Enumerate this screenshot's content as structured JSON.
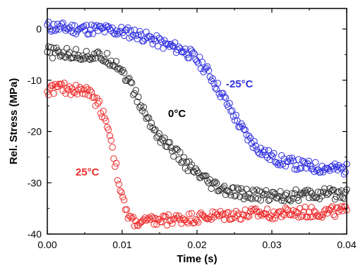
{
  "chart_data": {
    "type": "scatter",
    "title": "",
    "xlabel": "Time (s)",
    "ylabel": "Rel. Stress (MPa)",
    "xlim": [
      0.0,
      0.04
    ],
    "ylim": [
      -40,
      4
    ],
    "xticks": [
      0.0,
      0.01,
      0.02,
      0.03,
      0.04
    ],
    "xtick_labels": [
      "0.00",
      "0.01",
      "0.02",
      "0.03",
      "0.04"
    ],
    "yticks": [
      0,
      -10,
      -20,
      -30,
      -40
    ],
    "ytick_labels": [
      "0",
      "-10",
      "-20",
      "-30",
      "-40"
    ],
    "marker": "open-circle",
    "grid": false,
    "legend": "none (series labeled directly on plot)",
    "series": [
      {
        "name": "-25°C",
        "color": "#2f2fe0",
        "x": [
          0.0,
          0.002,
          0.004,
          0.006,
          0.008,
          0.01,
          0.012,
          0.014,
          0.016,
          0.018,
          0.019,
          0.02,
          0.021,
          0.022,
          0.023,
          0.024,
          0.025,
          0.026,
          0.027,
          0.028,
          0.029,
          0.03,
          0.031,
          0.032,
          0.033,
          0.034,
          0.035,
          0.036,
          0.037,
          0.038,
          0.039,
          0.04
        ],
        "y": [
          0.5,
          0.2,
          0.0,
          0.0,
          -0.2,
          -0.5,
          -1.0,
          -2.0,
          -3.2,
          -4.0,
          -4.8,
          -6.0,
          -7.5,
          -9.5,
          -12.0,
          -14.5,
          -17.0,
          -19.5,
          -21.5,
          -23.0,
          -24.2,
          -25.0,
          -25.6,
          -26.0,
          -26.3,
          -26.6,
          -26.8,
          -27.0,
          -27.1,
          -27.2,
          -27.3,
          -27.4
        ]
      },
      {
        "name": "0°C",
        "color": "#333333",
        "x": [
          0.0,
          0.002,
          0.004,
          0.006,
          0.008,
          0.009,
          0.01,
          0.011,
          0.012,
          0.013,
          0.014,
          0.015,
          0.016,
          0.017,
          0.018,
          0.019,
          0.02,
          0.021,
          0.022,
          0.023,
          0.024,
          0.025,
          0.026,
          0.028,
          0.03,
          0.032,
          0.034,
          0.036,
          0.038,
          0.04
        ],
        "y": [
          -4.5,
          -4.8,
          -5.0,
          -5.2,
          -5.8,
          -6.5,
          -8.0,
          -10.5,
          -13.5,
          -16.5,
          -19.0,
          -21.0,
          -22.5,
          -24.0,
          -25.5,
          -27.0,
          -28.3,
          -29.5,
          -30.5,
          -31.2,
          -31.7,
          -32.0,
          -32.2,
          -32.4,
          -32.5,
          -32.5,
          -32.4,
          -32.3,
          -32.2,
          -32.0
        ]
      },
      {
        "name": "25°C",
        "color": "#ee2b2b",
        "x": [
          0.0,
          0.001,
          0.002,
          0.003,
          0.004,
          0.005,
          0.006,
          0.007,
          0.008,
          0.0085,
          0.009,
          0.0095,
          0.01,
          0.0105,
          0.011,
          0.012,
          0.014,
          0.016,
          0.018,
          0.02,
          0.022,
          0.024,
          0.026,
          0.028,
          0.03,
          0.032,
          0.034,
          0.036,
          0.038,
          0.04
        ],
        "y": [
          -12.0,
          -11.5,
          -11.5,
          -11.8,
          -11.8,
          -12.0,
          -13.0,
          -15.0,
          -18.5,
          -21.5,
          -25.5,
          -29.5,
          -33.0,
          -35.5,
          -37.0,
          -37.8,
          -37.5,
          -37.2,
          -37.0,
          -36.8,
          -36.5,
          -36.3,
          -36.2,
          -36.0,
          -36.0,
          -35.9,
          -35.8,
          -35.8,
          -35.7,
          -35.6
        ]
      }
    ]
  }
}
